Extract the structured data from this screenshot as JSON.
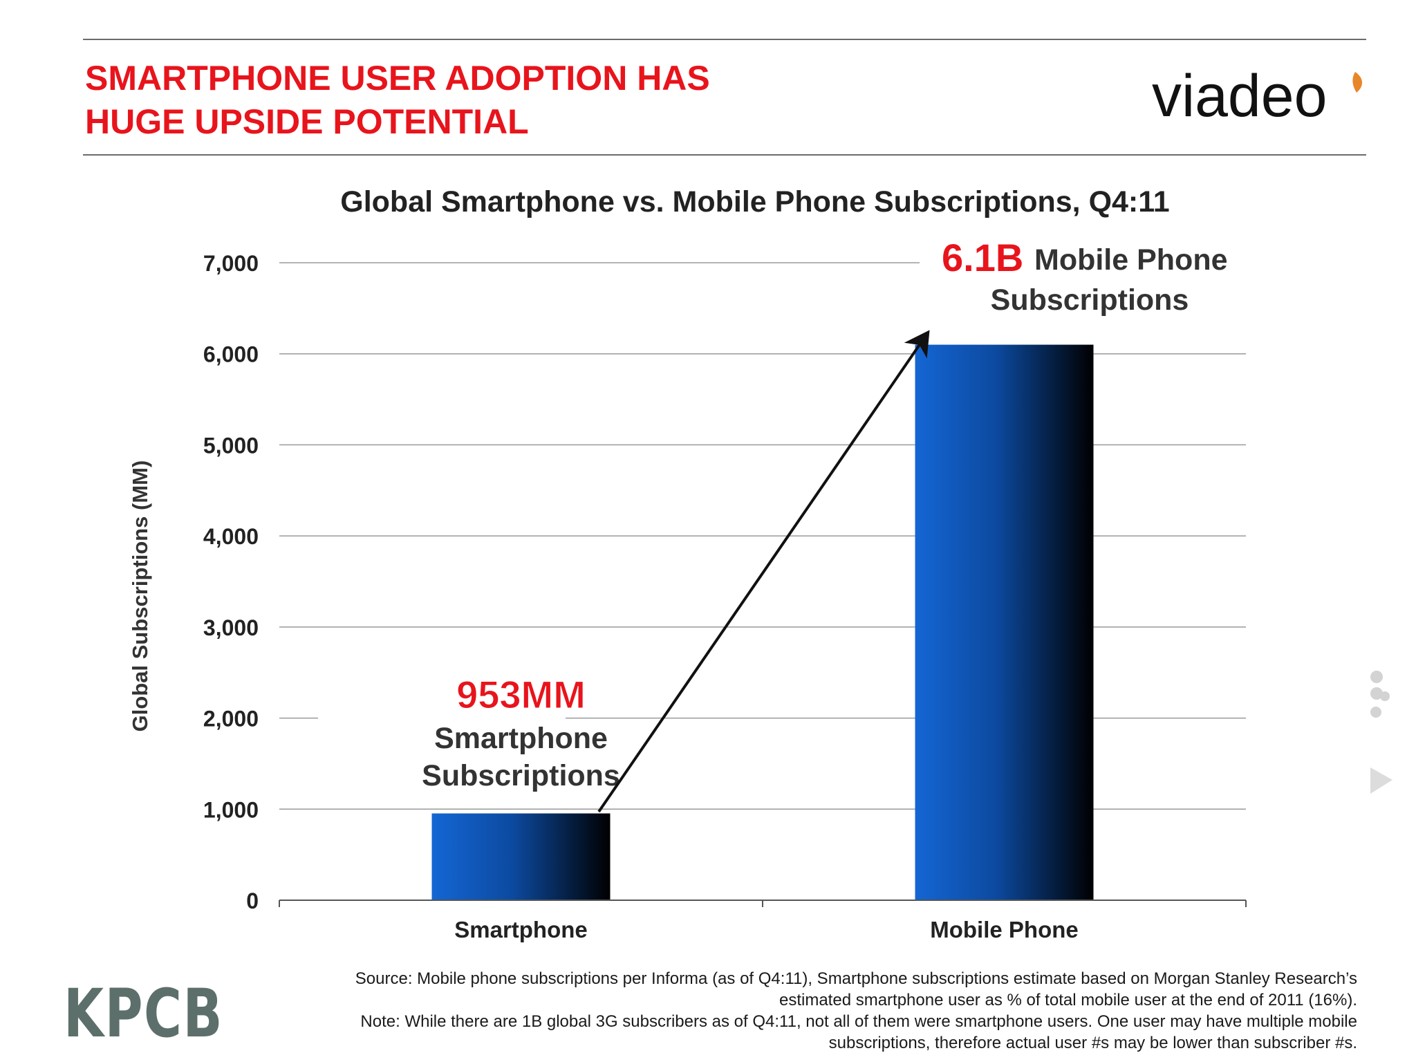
{
  "header": {
    "title_line1": "SMARTPHONE USER ADOPTION HAS",
    "title_line2": "HUGE UPSIDE POTENTIAL",
    "brand_logo_text": "viadeo",
    "accent_color": "#e8141c",
    "logo_leaf_color": "#e8862a"
  },
  "chart_data": {
    "type": "bar",
    "title": "Global Smartphone vs. Mobile Phone Subscriptions, Q4:11",
    "ylabel": "Global Subscriptions (MM)",
    "xlabel": "",
    "categories": [
      "Smartphone",
      "Mobile Phone"
    ],
    "values": [
      953,
      6100
    ],
    "ylim": [
      0,
      7000
    ],
    "yticks": [
      "0",
      "1,000",
      "2,000",
      "3,000",
      "4,000",
      "5,000",
      "6,000",
      "7,000"
    ],
    "grid": true,
    "bar_gradient": [
      "#1466d4",
      "#000000"
    ],
    "annotations": [
      {
        "value_label": "953MM",
        "text_lines": [
          "Smartphone",
          "Subscriptions"
        ]
      },
      {
        "value_label": "6.1B",
        "text_lines": [
          "Mobile Phone",
          "Subscriptions"
        ]
      }
    ],
    "arrow": "growth arrow from Smartphone bar to Mobile Phone bar"
  },
  "footnote": {
    "lines": [
      "Source: Mobile phone subscriptions per Informa (as of Q4:11), Smartphone subscriptions estimate based on Morgan Stanley Research’s",
      "estimated smartphone user as % of total mobile user at the end of 2011 (16%).",
      "Note: While there are 1B global 3G subscribers as of Q4:11, not all of them were smartphone users. One user may have multiple mobile",
      "subscriptions, therefore actual user #s may be lower than subscriber #s."
    ]
  },
  "org_logo_text": "KPCB"
}
